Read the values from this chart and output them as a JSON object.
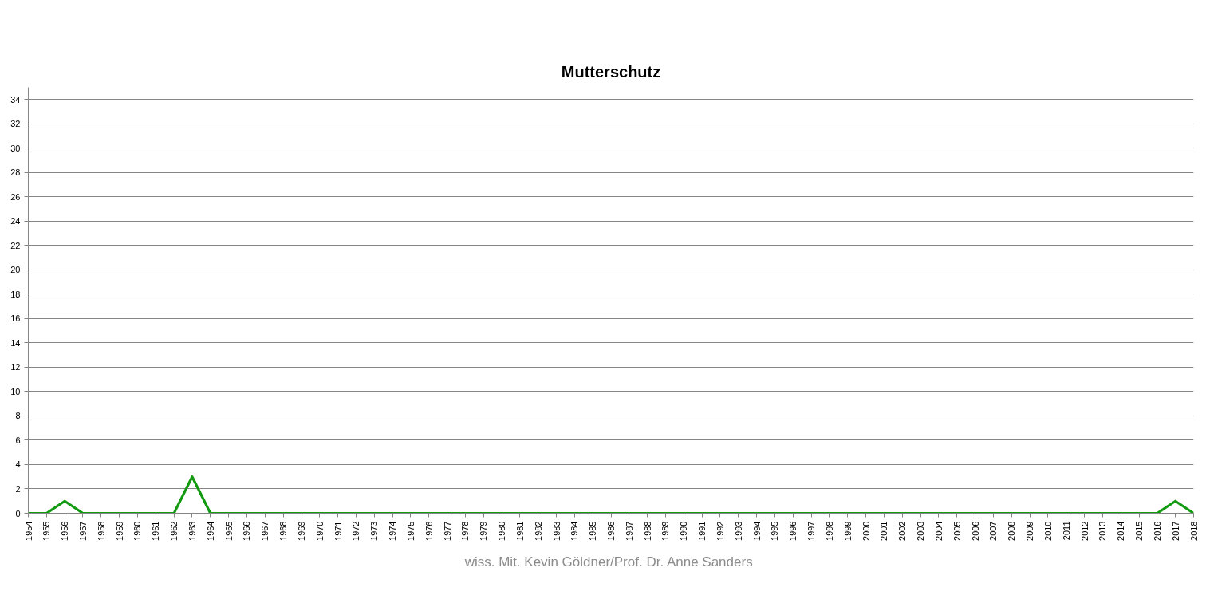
{
  "chart_data": {
    "type": "line",
    "title": "Mutterschutz",
    "annotations": [
      "wiss. Mit. Kevin Göldner/Prof.  Dr. Anne Sanders"
    ],
    "categories": [
      "1954",
      "1955",
      "1956",
      "1957",
      "1958",
      "1959",
      "1960",
      "1961",
      "1962",
      "1963",
      "1964",
      "1965",
      "1966",
      "1967",
      "1968",
      "1969",
      "1970",
      "1971",
      "1972",
      "1973",
      "1974",
      "1975",
      "1976",
      "1977",
      "1978",
      "1979",
      "1980",
      "1981",
      "1982",
      "1983",
      "1984",
      "1985",
      "1986",
      "1987",
      "1988",
      "1989",
      "1990",
      "1991",
      "1992",
      "1993",
      "1994",
      "1995",
      "1996",
      "1997",
      "1998",
      "1999",
      "2000",
      "2001",
      "2002",
      "2003",
      "2004",
      "2005",
      "2006",
      "2007",
      "2008",
      "2009",
      "2010",
      "2011",
      "2012",
      "2013",
      "2014",
      "2015",
      "2016",
      "2017",
      "2018"
    ],
    "series": [
      {
        "color": "#129a10",
        "values": [
          0,
          0,
          1,
          0,
          0,
          0,
          0,
          0,
          0,
          3,
          0,
          0,
          0,
          0,
          0,
          0,
          0,
          0,
          0,
          0,
          0,
          0,
          0,
          0,
          0,
          0,
          0,
          0,
          0,
          0,
          0,
          0,
          0,
          0,
          0,
          0,
          0,
          0,
          0,
          0,
          0,
          0,
          0,
          0,
          0,
          0,
          0,
          0,
          0,
          0,
          0,
          0,
          0,
          0,
          0,
          0,
          0,
          0,
          0,
          0,
          0,
          0,
          0,
          1,
          0
        ]
      }
    ],
    "ylim": [
      0,
      35
    ],
    "yticks": [
      0,
      2,
      4,
      6,
      8,
      10,
      12,
      14,
      16,
      18,
      20,
      22,
      24,
      26,
      28,
      30,
      32,
      34
    ],
    "grid": "y",
    "line_style": "solid"
  }
}
